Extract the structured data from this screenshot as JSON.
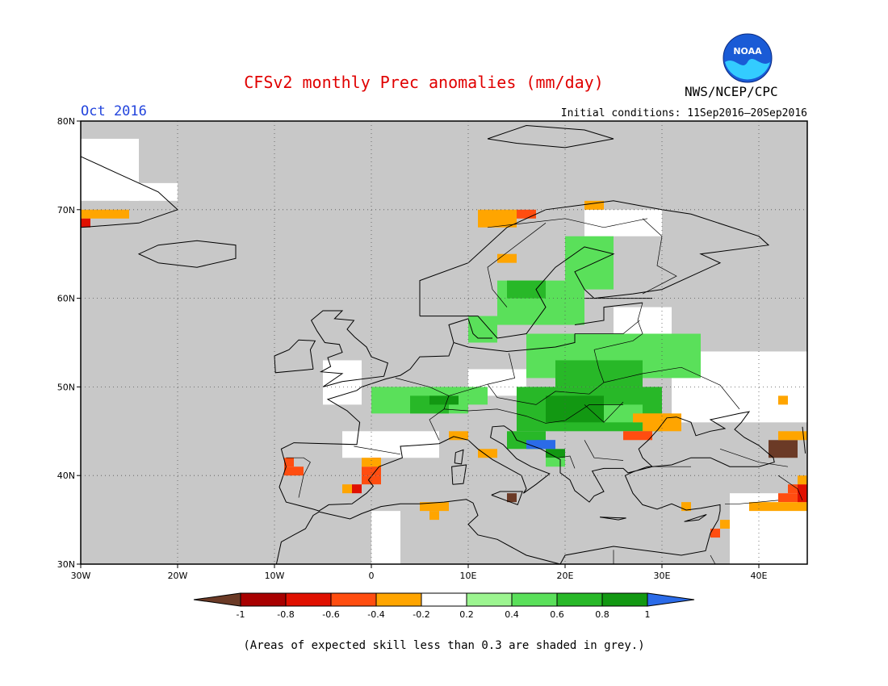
{
  "header": {
    "title": "CFSv2 monthly Prec anomalies (mm/day)",
    "agency": "NWS/NCEP/CPC",
    "logo_text": "NOAA",
    "valid_month": "Oct 2016",
    "initial_conditions": "Initial conditions: 11Sep2016–20Sep2016"
  },
  "map": {
    "lat_range": [
      30,
      80
    ],
    "lon_range": [
      -30,
      45
    ],
    "lat_labels": [
      "80N",
      "70N",
      "60N",
      "50N",
      "40N",
      "30N"
    ],
    "lat_values": [
      80,
      70,
      60,
      50,
      40,
      30
    ],
    "lon_labels": [
      "30W",
      "20W",
      "10W",
      "0",
      "10E",
      "20E",
      "30E",
      "40E"
    ],
    "lon_values": [
      -30,
      -20,
      -10,
      0,
      10,
      20,
      30,
      40
    ],
    "grid": "dotted",
    "background_note": "grey = expected skill below 0.3",
    "colors": {
      "grey": "#c8c8c8",
      "ocean": "#c8c8c8",
      "coast": "#000000"
    },
    "anomaly_cells": [
      {
        "lon": -30,
        "lat": 69,
        "w": 5,
        "h": 1,
        "class": "-0.4"
      },
      {
        "lon": -30,
        "lat": 68,
        "w": 1,
        "h": 1,
        "class": "-0.8"
      },
      {
        "lon": 11,
        "lat": 68,
        "w": 4,
        "h": 2,
        "class": "-0.4"
      },
      {
        "lon": 15,
        "lat": 69,
        "w": 2,
        "h": 1,
        "class": "-0.6"
      },
      {
        "lon": 13,
        "lat": 64,
        "w": 2,
        "h": 1,
        "class": "-0.4"
      },
      {
        "lon": 22,
        "lat": 70,
        "w": 2,
        "h": 1,
        "class": "-0.4"
      },
      {
        "lon": 13,
        "lat": 57,
        "w": 9,
        "h": 5,
        "class": "0.4"
      },
      {
        "lon": 14,
        "lat": 60,
        "w": 4,
        "h": 2,
        "class": "0.6"
      },
      {
        "lon": 20,
        "lat": 61,
        "w": 5,
        "h": 6,
        "class": "0.4"
      },
      {
        "lon": 10,
        "lat": 55,
        "w": 3,
        "h": 3,
        "class": "0.4"
      },
      {
        "lon": 16,
        "lat": 51,
        "w": 18,
        "h": 5,
        "class": "0.4"
      },
      {
        "lon": 19,
        "lat": 50,
        "w": 9,
        "h": 3,
        "class": "0.6"
      },
      {
        "lon": 24,
        "lat": 55,
        "w": 8,
        "h": 1,
        "class": "0.4"
      },
      {
        "lon": 0,
        "lat": 47,
        "w": 10,
        "h": 3,
        "class": "0.4"
      },
      {
        "lon": 4,
        "lat": 47,
        "w": 4,
        "h": 2,
        "class": "0.6"
      },
      {
        "lon": 6,
        "lat": 48,
        "w": 3,
        "h": 1,
        "class": "0.8"
      },
      {
        "lon": 10,
        "lat": 48,
        "w": 2,
        "h": 2,
        "class": "0.4"
      },
      {
        "lon": 15,
        "lat": 45,
        "w": 15,
        "h": 5,
        "class": "0.6"
      },
      {
        "lon": 18,
        "lat": 46,
        "w": 6,
        "h": 3,
        "class": "0.8"
      },
      {
        "lon": 14,
        "lat": 43,
        "w": 4,
        "h": 2,
        "class": "0.6"
      },
      {
        "lon": 16,
        "lat": 43,
        "w": 3,
        "h": 1,
        "class": "1"
      },
      {
        "lon": 18,
        "lat": 42,
        "w": 2,
        "h": 1,
        "class": "0.8"
      },
      {
        "lon": 17,
        "lat": 43,
        "w": 2,
        "h": 1,
        "class": "1"
      },
      {
        "lon": 18,
        "lat": 41,
        "w": 2,
        "h": 1,
        "class": "0.4"
      },
      {
        "lon": 24,
        "lat": 46,
        "w": 4,
        "h": 2,
        "class": "0.4"
      },
      {
        "lon": 27,
        "lat": 46,
        "w": 4,
        "h": 1,
        "class": "-0.4"
      },
      {
        "lon": 28,
        "lat": 45,
        "w": 4,
        "h": 2,
        "class": "-0.4"
      },
      {
        "lon": 26,
        "lat": 44,
        "w": 3,
        "h": 1,
        "class": "-0.6"
      },
      {
        "lon": 8,
        "lat": 44,
        "w": 2,
        "h": 1,
        "class": "-0.4"
      },
      {
        "lon": 11,
        "lat": 42,
        "w": 2,
        "h": 1,
        "class": "-0.4"
      },
      {
        "lon": -9,
        "lat": 41,
        "w": 1,
        "h": 1,
        "class": "-0.6"
      },
      {
        "lon": -9,
        "lat": 40,
        "w": 2,
        "h": 1,
        "class": "-0.6"
      },
      {
        "lon": -1,
        "lat": 40,
        "w": 2,
        "h": 1,
        "class": "-0.6"
      },
      {
        "lon": 0,
        "lat": 41,
        "w": 1,
        "h": 1,
        "class": "-0.8"
      },
      {
        "lon": -1,
        "lat": 39,
        "w": 2,
        "h": 1,
        "class": "-0.6"
      },
      {
        "lon": -1,
        "lat": 41,
        "w": 2,
        "h": 1,
        "class": "-0.4"
      },
      {
        "lon": -3,
        "lat": 38,
        "w": 1,
        "h": 1,
        "class": "-0.4"
      },
      {
        "lon": -2,
        "lat": 38,
        "w": 1,
        "h": 1,
        "class": "-0.8"
      },
      {
        "lon": 5,
        "lat": 36,
        "w": 3,
        "h": 1,
        "class": "-0.4"
      },
      {
        "lon": 6,
        "lat": 35,
        "w": 1,
        "h": 1,
        "class": "-0.4"
      },
      {
        "lon": 14,
        "lat": 37,
        "w": 1,
        "h": 1,
        "class": "-1"
      },
      {
        "lon": 41,
        "lat": 42,
        "w": 3,
        "h": 2,
        "class": "-1"
      },
      {
        "lon": 42,
        "lat": 44,
        "w": 3,
        "h": 1,
        "class": "-0.4"
      },
      {
        "lon": 43,
        "lat": 38,
        "w": 2,
        "h": 1,
        "class": "-0.6"
      },
      {
        "lon": 42,
        "lat": 37,
        "w": 3,
        "h": 1,
        "class": "-0.6"
      },
      {
        "lon": 39,
        "lat": 36,
        "w": 6,
        "h": 1,
        "class": "-0.4"
      },
      {
        "lon": 44,
        "lat": 37,
        "w": 1,
        "h": 2,
        "class": "-0.8"
      },
      {
        "lon": 44,
        "lat": 39,
        "w": 1,
        "h": 1,
        "class": "-0.4"
      },
      {
        "lon": 35,
        "lat": 33,
        "w": 1,
        "h": 1,
        "class": "-0.6"
      },
      {
        "lon": 36,
        "lat": 34,
        "w": 1,
        "h": 1,
        "class": "-0.4"
      },
      {
        "lon": 32,
        "lat": 36,
        "w": 1,
        "h": 1,
        "class": "-0.4"
      },
      {
        "lon": 42,
        "lat": 48,
        "w": 1,
        "h": 1,
        "class": "-0.4"
      }
    ],
    "white_cells": [
      {
        "lon": -30,
        "lat": 71,
        "w": 6,
        "h": 7
      },
      {
        "lon": -25,
        "lat": 71,
        "w": 5,
        "h": 2
      },
      {
        "lon": 31,
        "lat": 46,
        "w": 14,
        "h": 8
      },
      {
        "lon": 36,
        "lat": 48,
        "w": 9,
        "h": 5
      },
      {
        "lon": -5,
        "lat": 48,
        "w": 4,
        "h": 5
      },
      {
        "lon": -3,
        "lat": 42,
        "w": 10,
        "h": 3
      },
      {
        "lon": 0,
        "lat": 30,
        "w": 3,
        "h": 6
      },
      {
        "lon": 22,
        "lat": 67,
        "w": 8,
        "h": 3
      },
      {
        "lon": 37,
        "lat": 30,
        "w": 8,
        "h": 8
      },
      {
        "lon": 25,
        "lat": 56,
        "w": 6,
        "h": 3
      },
      {
        "lon": 10,
        "lat": 49,
        "w": 6,
        "h": 3
      }
    ]
  },
  "legend": {
    "labels": [
      "-1",
      "-0.8",
      "-0.6",
      "-0.4",
      "-0.2",
      "0.2",
      "0.4",
      "0.6",
      "0.8",
      "1"
    ],
    "colors": {
      "lt_-1": "#6b3a26",
      "-1": "#a80000",
      "-0.8": "#e01000",
      "-0.6": "#ff4d10",
      "-0.4": "#ffa500",
      "-0.2": "#ffffff",
      "0.2": "#9cf590",
      "0.4": "#5ae05a",
      "0.6": "#28b828",
      "0.8": "#129812",
      "gt_1": "#2b6be8"
    }
  },
  "footnote": "(Areas of expected skill less than 0.3 are shaded in grey.)"
}
